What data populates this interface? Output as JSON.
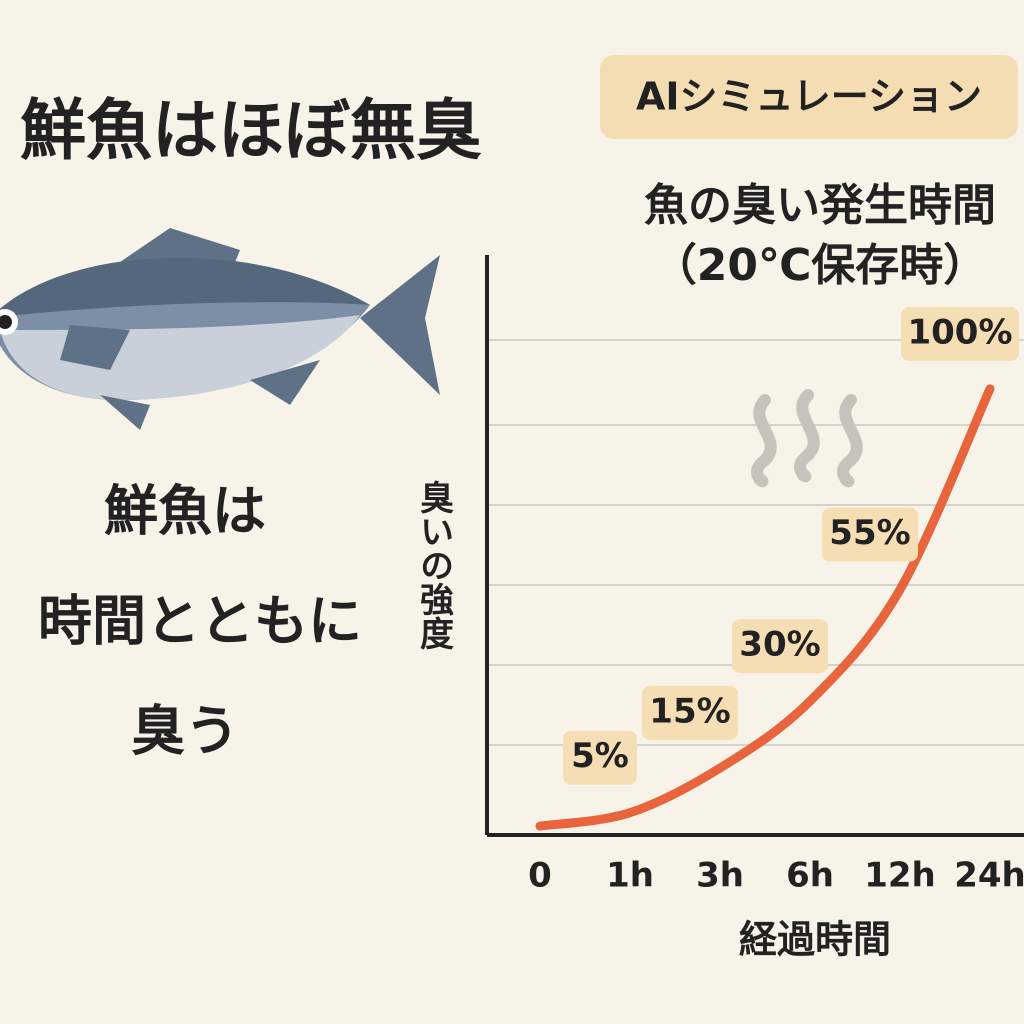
{
  "headline": "鮮魚はほぼ無臭",
  "caption": [
    "鮮魚は",
    "時間とともに",
    "臭う"
  ],
  "badge": "AIシミュレーション",
  "chart_data": {
    "type": "line",
    "title": "魚の臭い発生時間",
    "subtitle": "（20℃保存時）",
    "x_label": "経過時間",
    "y_label": "臭いの強度",
    "categories": [
      "0",
      "1h",
      "3h",
      "6h",
      "12h",
      "24h"
    ],
    "values": [
      2,
      5,
      15,
      30,
      55,
      100
    ],
    "value_labels": [
      null,
      "5%",
      "15%",
      "30%",
      "55%",
      "100%"
    ],
    "color": "#e8643c",
    "ylim": [
      0,
      130
    ]
  }
}
